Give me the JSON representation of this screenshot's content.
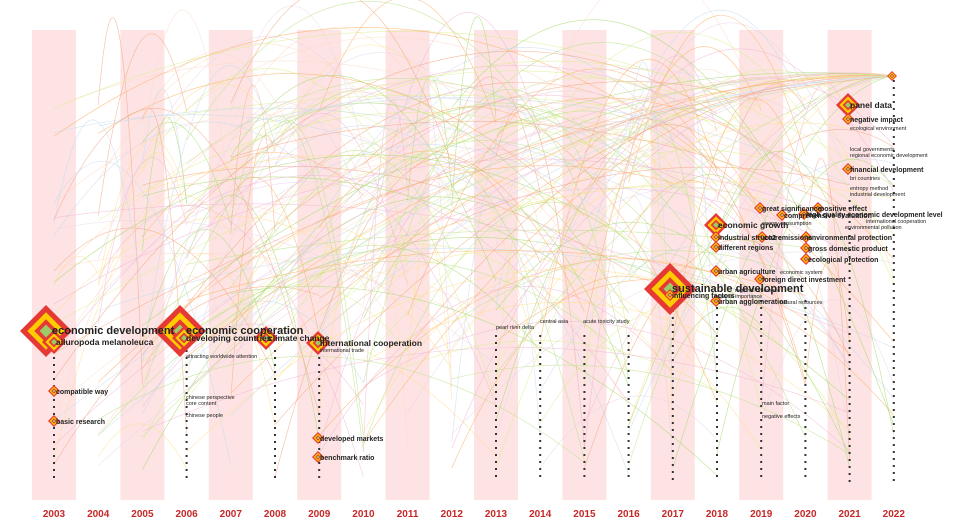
{
  "years": [
    "2003",
    "2004",
    "2005",
    "2006",
    "2007",
    "2008",
    "2009",
    "2010",
    "2011",
    "2012",
    "2013",
    "2014",
    "2015",
    "2016",
    "2017",
    "2018",
    "2019",
    "2020",
    "2021",
    "2022"
  ],
  "colors": {
    "stripe": "#fde3e3",
    "year_label": "#c62828",
    "node_outer": "#e53935",
    "node_mid": "#ffcc00",
    "node_inner": "#9ccc65"
  },
  "keywords": [
    {
      "id": "economic-development",
      "text": "economic development",
      "year": "2003",
      "size": "large"
    },
    {
      "id": "ailuropoda-melanoleuca",
      "text": "ailuropoda melanoleuca",
      "year": "2003",
      "size": "medium"
    },
    {
      "id": "compatible-way",
      "text": "compatible way",
      "year": "2003",
      "size": "small"
    },
    {
      "id": "basic-research",
      "text": "basic research",
      "year": "2003",
      "size": "small"
    },
    {
      "id": "economic-cooperation",
      "text": "economic cooperation",
      "year": "2006",
      "size": "large"
    },
    {
      "id": "developing-countries",
      "text": "developing countries",
      "year": "2006",
      "size": "medium"
    },
    {
      "id": "attracting-worldwide-attention",
      "text": "attracting worldwide attention",
      "year": "2006",
      "size": "tiny"
    },
    {
      "id": "chinese-perspective",
      "text": "chinese perspective",
      "year": "2006",
      "size": "tiny"
    },
    {
      "id": "core-content",
      "text": "core content",
      "year": "2006",
      "size": "tiny"
    },
    {
      "id": "chinese-people",
      "text": "chinese people",
      "year": "2006",
      "size": "tiny"
    },
    {
      "id": "climate-change",
      "text": "climate change",
      "year": "2008",
      "size": "medium"
    },
    {
      "id": "international-cooperation",
      "text": "international cooperation",
      "year": "2009",
      "size": "medium"
    },
    {
      "id": "international-trade",
      "text": "international trade",
      "year": "2009",
      "size": "tiny"
    },
    {
      "id": "developed-markets",
      "text": "developed markets",
      "year": "2009",
      "size": "small"
    },
    {
      "id": "benchmark-ratio",
      "text": "benchmark ratio",
      "year": "2009",
      "size": "small"
    },
    {
      "id": "pearl-river-delta",
      "text": "pearl river delta",
      "year": "2013",
      "size": "tiny"
    },
    {
      "id": "central-asia",
      "text": "central asia",
      "year": "2014",
      "size": "tiny"
    },
    {
      "id": "acute-toxicity-study",
      "text": "acute toxicity study",
      "year": "2015",
      "size": "tiny"
    },
    {
      "id": "sustainable-development",
      "text": "sustainable development",
      "year": "2017",
      "size": "large"
    },
    {
      "id": "influencing-factors",
      "text": "influencing factors",
      "year": "2017",
      "size": "small"
    },
    {
      "id": "regional-difference",
      "text": "regional difference",
      "year": "2017",
      "size": "tiny"
    },
    {
      "id": "regional-importance",
      "text": "regional importance",
      "year": "2017",
      "size": "tiny"
    },
    {
      "id": "urban-agglomeration",
      "text": "urban agglomeration",
      "year": "2018",
      "size": "small"
    },
    {
      "id": "natural-resources",
      "text": "natural resources",
      "year": "2018",
      "size": "tiny"
    },
    {
      "id": "economic-growth",
      "text": "economic growth",
      "year": "2018",
      "size": "medium"
    },
    {
      "id": "industrial-structure",
      "text": "industrial structure",
      "year": "2018",
      "size": "small"
    },
    {
      "id": "co2-emissions",
      "text": "co2 emissions",
      "year": "2018",
      "size": "small"
    },
    {
      "id": "environmental-protection",
      "text": "environmental protection",
      "year": "2019",
      "size": "small"
    },
    {
      "id": "different-regions",
      "text": "different regions",
      "year": "2018",
      "size": "small"
    },
    {
      "id": "gross-domestic-product",
      "text": "gross domestic product",
      "year": "2019",
      "size": "small"
    },
    {
      "id": "ecological-protection",
      "text": "ecological protection",
      "year": "2019",
      "size": "small"
    },
    {
      "id": "urban-agriculture",
      "text": "urban agriculture",
      "year": "2018",
      "size": "small"
    },
    {
      "id": "economic-system",
      "text": "economic system",
      "year": "2019",
      "size": "tiny"
    },
    {
      "id": "foreign-direct-investment",
      "text": "foreign direct investment",
      "year": "2019",
      "size": "small"
    },
    {
      "id": "great-significance",
      "text": "great significance",
      "year": "2019",
      "size": "small"
    },
    {
      "id": "comprehensive-evaluation",
      "text": "comprehensive evaluation",
      "year": "2019",
      "size": "small"
    },
    {
      "id": "positive-effect",
      "text": "positive effect",
      "year": "2020",
      "size": "small"
    },
    {
      "id": "energy-consumption",
      "text": "energy consumption",
      "year": "2019",
      "size": "tiny"
    },
    {
      "id": "high-quality-economic-development",
      "text": "high quality economic development level",
      "year": "2020",
      "size": "small"
    },
    {
      "id": "international-cooperation-2",
      "text": "international cooperation",
      "year": "2020",
      "size": "tiny"
    },
    {
      "id": "environmental-pollution",
      "text": "environmental pollution",
      "year": "2020",
      "size": "tiny"
    },
    {
      "id": "main-factor",
      "text": "main factor",
      "year": "2019",
      "size": "tiny"
    },
    {
      "id": "negative-effects",
      "text": "negative effects",
      "year": "2019",
      "size": "tiny"
    },
    {
      "id": "panel-data",
      "text": "panel data",
      "year": "2021",
      "size": "medium"
    },
    {
      "id": "negative-impact",
      "text": "negative impact",
      "year": "2021",
      "size": "small"
    },
    {
      "id": "ecological-environment",
      "text": "ecological environment",
      "year": "2021",
      "size": "tiny"
    },
    {
      "id": "local-governments",
      "text": "local governments",
      "year": "2021",
      "size": "tiny"
    },
    {
      "id": "regional-economic-development",
      "text": "regional economic development",
      "year": "2021",
      "size": "tiny"
    },
    {
      "id": "financial-development",
      "text": "financial development",
      "year": "2021",
      "size": "small"
    },
    {
      "id": "brics-countries",
      "text": "bri countries",
      "year": "2021",
      "size": "tiny"
    },
    {
      "id": "entropy-method",
      "text": "entropy method",
      "year": "2021",
      "size": "tiny"
    },
    {
      "id": "industrial-development",
      "text": "industrial development",
      "year": "2021",
      "size": "tiny"
    }
  ]
}
